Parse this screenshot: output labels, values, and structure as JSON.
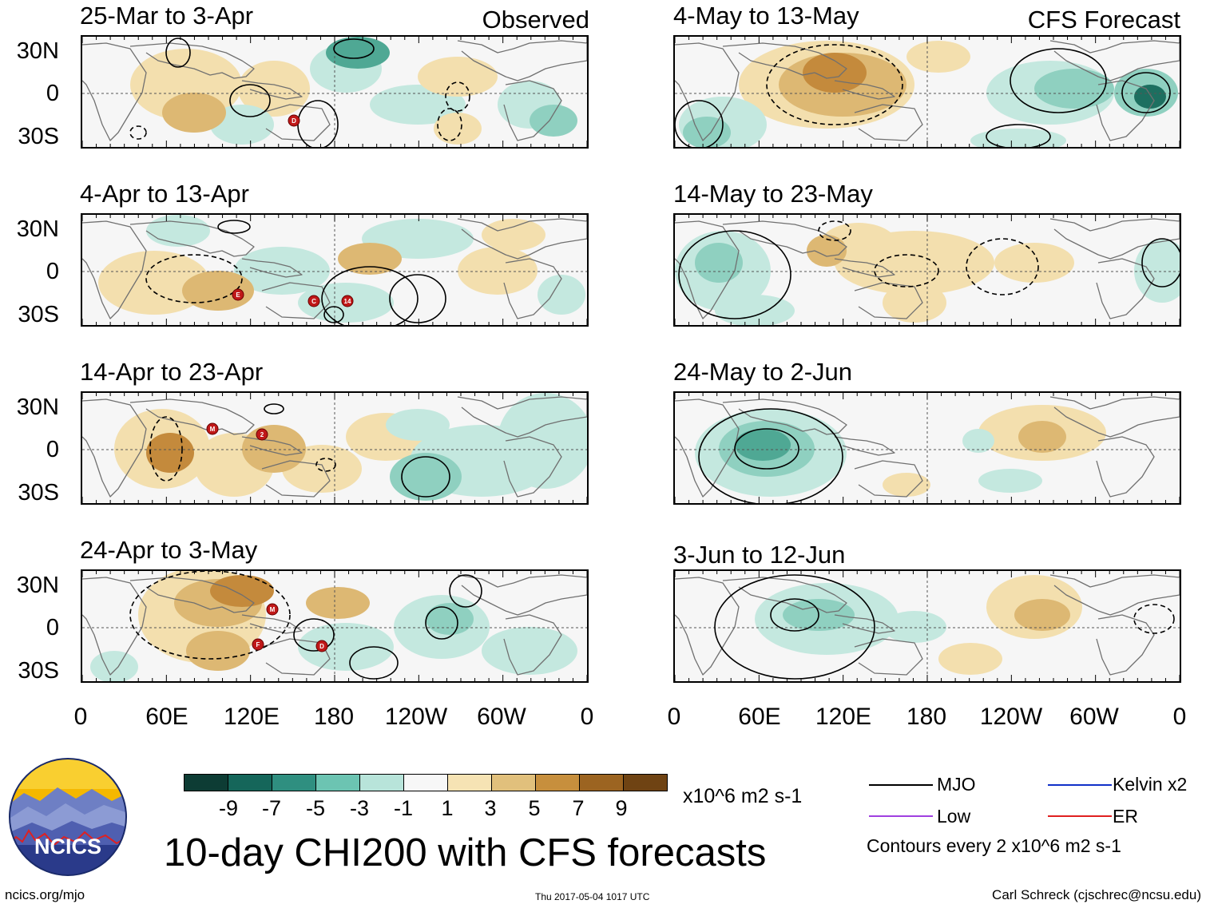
{
  "observed_label": "Observed",
  "forecast_label": "CFS Forecast",
  "panels": [
    {
      "title": "25-Mar to 3-Apr"
    },
    {
      "title": "4-Apr to 13-Apr"
    },
    {
      "title": "14-Apr to 23-Apr"
    },
    {
      "title": "24-Apr to 3-May"
    },
    {
      "title": "4-May to 13-May"
    },
    {
      "title": "14-May to 23-May"
    },
    {
      "title": "24-May to 2-Jun"
    },
    {
      "title": "3-Jun to 12-Jun"
    }
  ],
  "lat_labels": [
    "30N",
    "0",
    "30S"
  ],
  "lon_labels": [
    "0",
    "60E",
    "120E",
    "180",
    "120W",
    "60W",
    "0"
  ],
  "colorbar": {
    "colors": [
      "#0d3c34",
      "#15665a",
      "#2f8f80",
      "#6cc4b2",
      "#b8e4da",
      "#f7f7f7",
      "#f6e3b4",
      "#e1c07c",
      "#c78f3d",
      "#9c6421",
      "#6f4313"
    ],
    "labels": [
      "-9",
      "-7",
      "-5",
      "-3",
      "-1",
      "1",
      "3",
      "5",
      "7",
      "9"
    ],
    "units": "x10^6 m2 s-1"
  },
  "main_title": "10-day CHI200 with CFS forecasts",
  "logo_text": "NCICS",
  "legend": {
    "items": [
      {
        "label": "MJO",
        "color": "#000000"
      },
      {
        "label": "Kelvin x2",
        "color": "#1030c8"
      },
      {
        "label": "Low",
        "color": "#a040e0"
      },
      {
        "label": "ER",
        "color": "#e02020"
      }
    ],
    "contour_note": "Contours every 2 x10^6 m2 s-1"
  },
  "footer": {
    "left": "ncics.org/mjo",
    "center": "Thu 2017-05-04 1017 UTC",
    "right": "Carl Schreck (cjschrec@ncsu.edu)"
  },
  "storm_markers": [
    {
      "panel": 0,
      "label": "D"
    },
    {
      "panel": 1,
      "label": "E"
    },
    {
      "panel": 1,
      "label": "C"
    },
    {
      "panel": 1,
      "label": "14"
    },
    {
      "panel": 2,
      "label": "M"
    },
    {
      "panel": 2,
      "label": "2"
    },
    {
      "panel": 3,
      "label": "M"
    },
    {
      "panel": 3,
      "label": "F"
    },
    {
      "panel": 3,
      "label": "D"
    }
  ]
}
